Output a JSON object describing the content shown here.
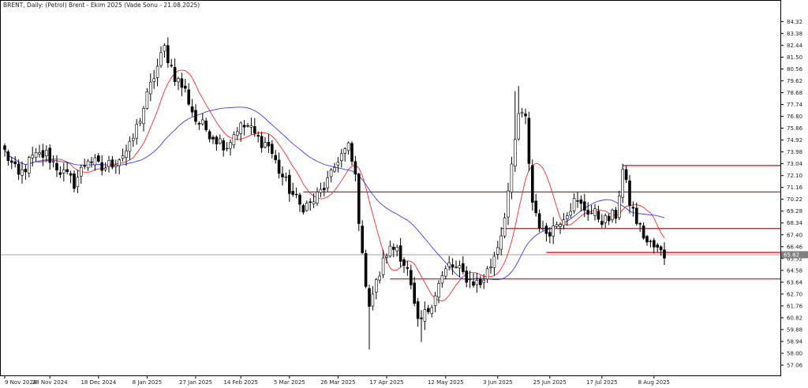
{
  "chart_title": "BRENT, Daily:  (Petrol) Brent - Ekim 2025 (Vade Sonu - 21.08.2025)",
  "current_price_label": "65.82",
  "colors": {
    "background": "#ffffff",
    "frame": "#000000",
    "ma_fast": "#ff2a2a",
    "ma_slow": "#3a3aff",
    "level_line": "#e00000",
    "bid_line": "#a0a0a0",
    "candle_up": "#ffffff",
    "candle_down": "#000000",
    "candle_wick": "#000000"
  },
  "chart_data": {
    "type": "candlestick",
    "title": "BRENT, Daily:  (Petrol) Brent - Ekim 2025 (Vade Sonu - 21.08.2025)",
    "ylim": [
      57.06,
      85.28
    ],
    "yticks": [
      "84.32",
      "83.38",
      "82.44",
      "81.50",
      "80.56",
      "79.62",
      "78.68",
      "77.74",
      "76.80",
      "75.86",
      "74.92",
      "73.98",
      "73.04",
      "72.10",
      "71.16",
      "70.22",
      "69.28",
      "68.34",
      "67.40",
      "66.46",
      "65.52",
      "64.58",
      "63.64",
      "62.70",
      "61.76",
      "60.82",
      "59.88",
      "58.94",
      "58.00",
      "57.06"
    ],
    "ytick_values": [
      84.32,
      83.38,
      82.44,
      81.5,
      80.56,
      79.62,
      78.68,
      77.74,
      76.8,
      75.86,
      74.92,
      73.98,
      73.04,
      72.1,
      71.16,
      70.22,
      69.28,
      68.34,
      67.4,
      66.46,
      65.52,
      64.58,
      63.64,
      62.7,
      61.76,
      60.82,
      59.88,
      58.94,
      58.0,
      57.06
    ],
    "xtick_labels": [
      "9 Nov 2024",
      "28 Nov 2024",
      "18 Dec 2024",
      "8 Jan 2025",
      "27 Jan 2025",
      "14 Feb 2025",
      "5 Mar 2025",
      "26 Mar 2025",
      "17 Apr 2025",
      "12 May 2025",
      "3 Jun 2025",
      "25 Jun 2025",
      "17 Jul 2025",
      "8 Aug 2025"
    ],
    "xtick_indices": [
      0,
      13,
      27,
      41,
      55,
      68,
      82,
      96,
      110,
      127,
      142,
      157,
      172,
      187
    ],
    "horizontal_levels": [
      {
        "value": 72.9,
        "from_index": 178
      },
      {
        "value": 70.8,
        "from_index": 86
      },
      {
        "value": 67.9,
        "from_index": 143
      },
      {
        "value": 66.0,
        "from_index": 156
      },
      {
        "value": 63.9,
        "from_index": 111
      }
    ],
    "current_price": 65.82,
    "waypoints": [
      [
        0,
        74.0
      ],
      [
        4,
        72.0
      ],
      [
        8,
        73.5
      ],
      [
        12,
        73.8
      ],
      [
        16,
        72.5
      ],
      [
        20,
        71.5
      ],
      [
        24,
        73.5
      ],
      [
        28,
        72.6
      ],
      [
        32,
        73.3
      ],
      [
        36,
        74.3
      ],
      [
        40,
        77.5
      ],
      [
        43,
        80.0
      ],
      [
        46,
        82.2
      ],
      [
        49,
        80.0
      ],
      [
        52,
        78.8
      ],
      [
        55,
        76.5
      ],
      [
        58,
        75.8
      ],
      [
        61,
        75.0
      ],
      [
        64,
        74.5
      ],
      [
        67,
        75.9
      ],
      [
        70,
        76.0
      ],
      [
        73,
        75.0
      ],
      [
        76,
        74.5
      ],
      [
        79,
        72.5
      ],
      [
        82,
        71.0
      ],
      [
        85,
        69.7
      ],
      [
        88,
        69.8
      ],
      [
        91,
        70.8
      ],
      [
        94,
        72.0
      ],
      [
        96,
        73.5
      ],
      [
        99,
        74.3
      ],
      [
        101,
        72.0
      ],
      [
        103,
        65.5
      ],
      [
        105,
        62.0
      ],
      [
        107,
        63.5
      ],
      [
        110,
        66.0
      ],
      [
        113,
        66.5
      ],
      [
        116,
        64.5
      ],
      [
        119,
        60.2
      ],
      [
        122,
        61.5
      ],
      [
        125,
        63.5
      ],
      [
        128,
        65.0
      ],
      [
        131,
        64.5
      ],
      [
        134,
        63.8
      ],
      [
        137,
        63.5
      ],
      [
        140,
        65.0
      ],
      [
        143,
        67.5
      ],
      [
        146,
        72.5
      ],
      [
        148,
        77.0
      ],
      [
        150,
        76.5
      ],
      [
        152,
        70.0
      ],
      [
        155,
        67.5
      ],
      [
        158,
        68.0
      ],
      [
        161,
        69.0
      ],
      [
        164,
        70.0
      ],
      [
        167,
        69.5
      ],
      [
        170,
        69.0
      ],
      [
        173,
        68.5
      ],
      [
        176,
        69.0
      ],
      [
        178,
        72.5
      ],
      [
        180,
        70.0
      ],
      [
        182,
        68.5
      ],
      [
        185,
        66.8
      ],
      [
        188,
        66.2
      ],
      [
        190,
        65.8
      ]
    ],
    "ma_fast": {
      "period": 10
    },
    "ma_slow": {
      "period": 30
    }
  }
}
